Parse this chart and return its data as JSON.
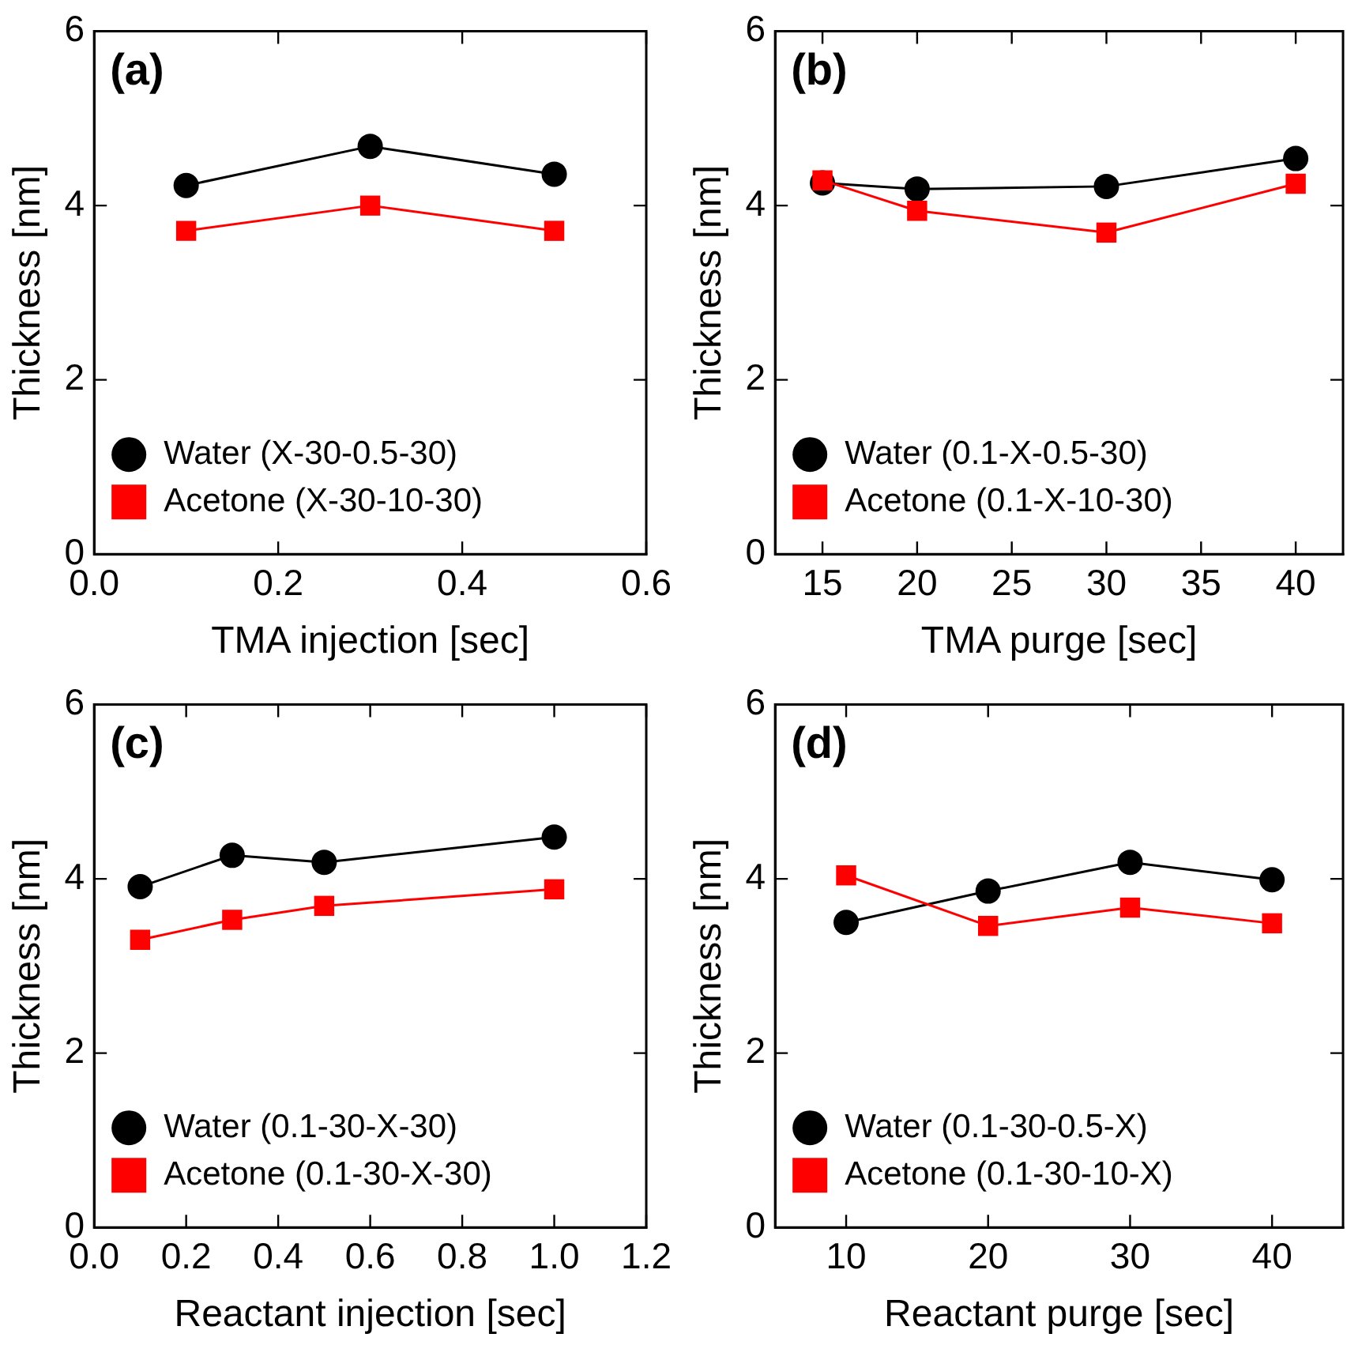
{
  "chart_data": [
    {
      "type": "line",
      "xlabel": "TMA injection [sec]",
      "ylabel": "Thickness [nm]",
      "annotations": [
        "(a)"
      ],
      "legend": "bottom left",
      "grid": false,
      "xlim": [
        0,
        0.6
      ],
      "xticks": [
        {
          "value": 0,
          "label": "0.0"
        },
        {
          "value": 0.2,
          "label": "0.2"
        },
        {
          "value": 0.4,
          "label": "0.4"
        },
        {
          "value": 0.6,
          "label": "0.6"
        }
      ],
      "ylim": [
        0,
        6
      ],
      "yticks": [
        0,
        2,
        4,
        6
      ],
      "x": [
        0.1,
        0.3,
        0.5
      ],
      "series": [
        {
          "name": "Water (X-30-0.5-30)",
          "color": "#000000",
          "marker": "circle",
          "values": [
            4.23,
            4.68,
            4.36
          ]
        },
        {
          "name": "Acetone (X-30-10-30)",
          "color": "#ff0000",
          "marker": "square",
          "values": [
            3.71,
            4.0,
            3.71
          ]
        }
      ]
    },
    {
      "type": "line",
      "xlabel": "TMA purge [sec]",
      "ylabel": "Thickness [nm]",
      "annotations": [
        "(b)"
      ],
      "legend": "bottom left",
      "grid": false,
      "xlim": [
        12.5,
        42.5
      ],
      "xticks": [
        15,
        20,
        25,
        30,
        35,
        40
      ],
      "ylim": [
        0,
        6
      ],
      "yticks": [
        0,
        2,
        4,
        6
      ],
      "x": [
        15,
        20,
        30,
        40
      ],
      "series": [
        {
          "name": "Water (0.1-X-0.5-30)",
          "color": "#000000",
          "marker": "circle",
          "values": [
            4.26,
            4.19,
            4.22,
            4.54
          ]
        },
        {
          "name": "Acetone (0.1-X-10-30)",
          "color": "#ff0000",
          "marker": "square",
          "values": [
            4.29,
            3.94,
            3.69,
            4.25
          ]
        }
      ]
    },
    {
      "type": "line",
      "xlabel": "Reactant injection [sec]",
      "ylabel": "Thickness [nm]",
      "annotations": [
        "(c)"
      ],
      "legend": "bottom left",
      "grid": false,
      "xlim": [
        0,
        1.2
      ],
      "xticks": [
        {
          "value": 0,
          "label": "0.0"
        },
        {
          "value": 0.2,
          "label": "0.2"
        },
        {
          "value": 0.4,
          "label": "0.4"
        },
        {
          "value": 0.6,
          "label": "0.6"
        },
        {
          "value": 0.8,
          "label": "0.8"
        },
        {
          "value": 1,
          "label": "1.0"
        },
        {
          "value": 1.2,
          "label": "1.2"
        }
      ],
      "ylim": [
        0,
        6
      ],
      "yticks": [
        0,
        2,
        4,
        6
      ],
      "x": [
        0.1,
        0.3,
        0.5,
        1.0
      ],
      "series": [
        {
          "name": "Water (0.1-30-X-30)",
          "color": "#000000",
          "marker": "circle",
          "values": [
            3.91,
            4.27,
            4.19,
            4.48
          ]
        },
        {
          "name": "Acetone (0.1-30-X-30)",
          "color": "#ff0000",
          "marker": "square",
          "values": [
            3.3,
            3.53,
            3.69,
            3.88
          ]
        }
      ]
    },
    {
      "type": "line",
      "xlabel": "Reactant purge [sec]",
      "ylabel": "Thickness [nm]",
      "annotations": [
        "(d)"
      ],
      "legend": "bottom left",
      "grid": false,
      "xlim": [
        5,
        45
      ],
      "xticks": [
        10,
        20,
        30,
        40
      ],
      "ylim": [
        0,
        6
      ],
      "yticks": [
        0,
        2,
        4,
        6
      ],
      "x": [
        10,
        20,
        30,
        40
      ],
      "series": [
        {
          "name": "Water (0.1-30-0.5-X)",
          "color": "#000000",
          "marker": "circle",
          "values": [
            3.5,
            3.86,
            4.19,
            3.99
          ]
        },
        {
          "name": "Acetone (0.1-30-10-X)",
          "color": "#ff0000",
          "marker": "square",
          "values": [
            4.04,
            3.46,
            3.67,
            3.49
          ]
        }
      ]
    }
  ]
}
